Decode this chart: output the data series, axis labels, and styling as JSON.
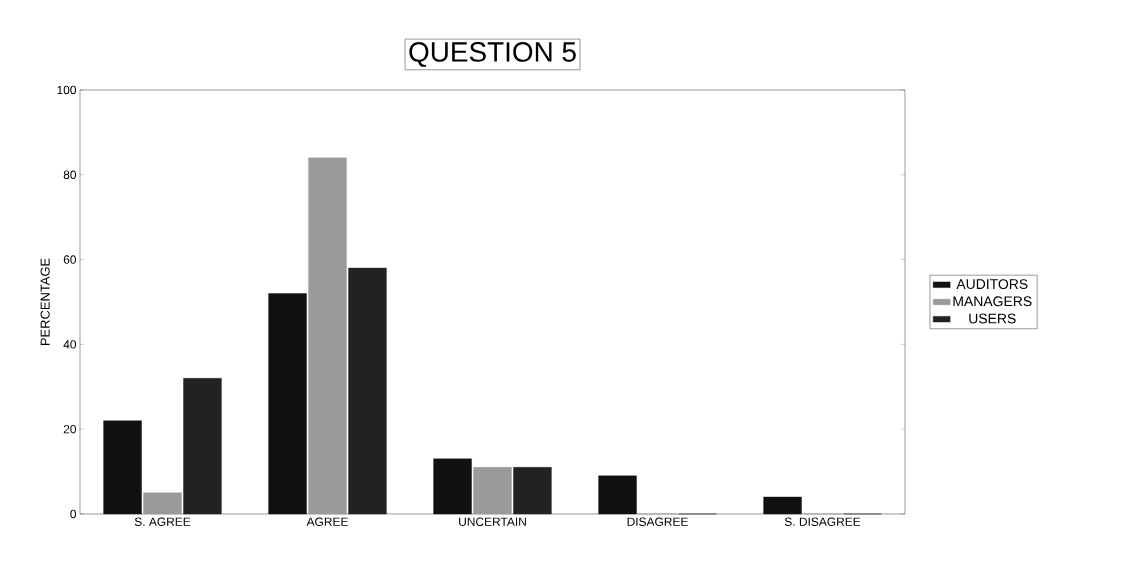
{
  "chart_data": {
    "type": "bar",
    "title": "QUESTION 5",
    "ylabel": "PERCENTAGE",
    "categories": [
      "S. AGREE",
      "AGREE",
      "UNCERTAIN",
      "DISAGREE",
      "S. DISAGREE"
    ],
    "series": [
      {
        "name": "AUDITORS",
        "color": "#111111",
        "values": [
          22,
          52,
          13,
          9,
          4
        ]
      },
      {
        "name": "MANAGERS",
        "color": "#9a9a9a",
        "values": [
          5,
          84,
          11,
          0,
          0
        ]
      },
      {
        "name": "USERS",
        "color": "#222222",
        "values": [
          32,
          58,
          11,
          0,
          0
        ]
      }
    ],
    "ylim": [
      0,
      100
    ],
    "yticks": [
      0,
      20,
      40,
      60,
      80,
      100
    ],
    "grid": false,
    "legend": "right"
  }
}
